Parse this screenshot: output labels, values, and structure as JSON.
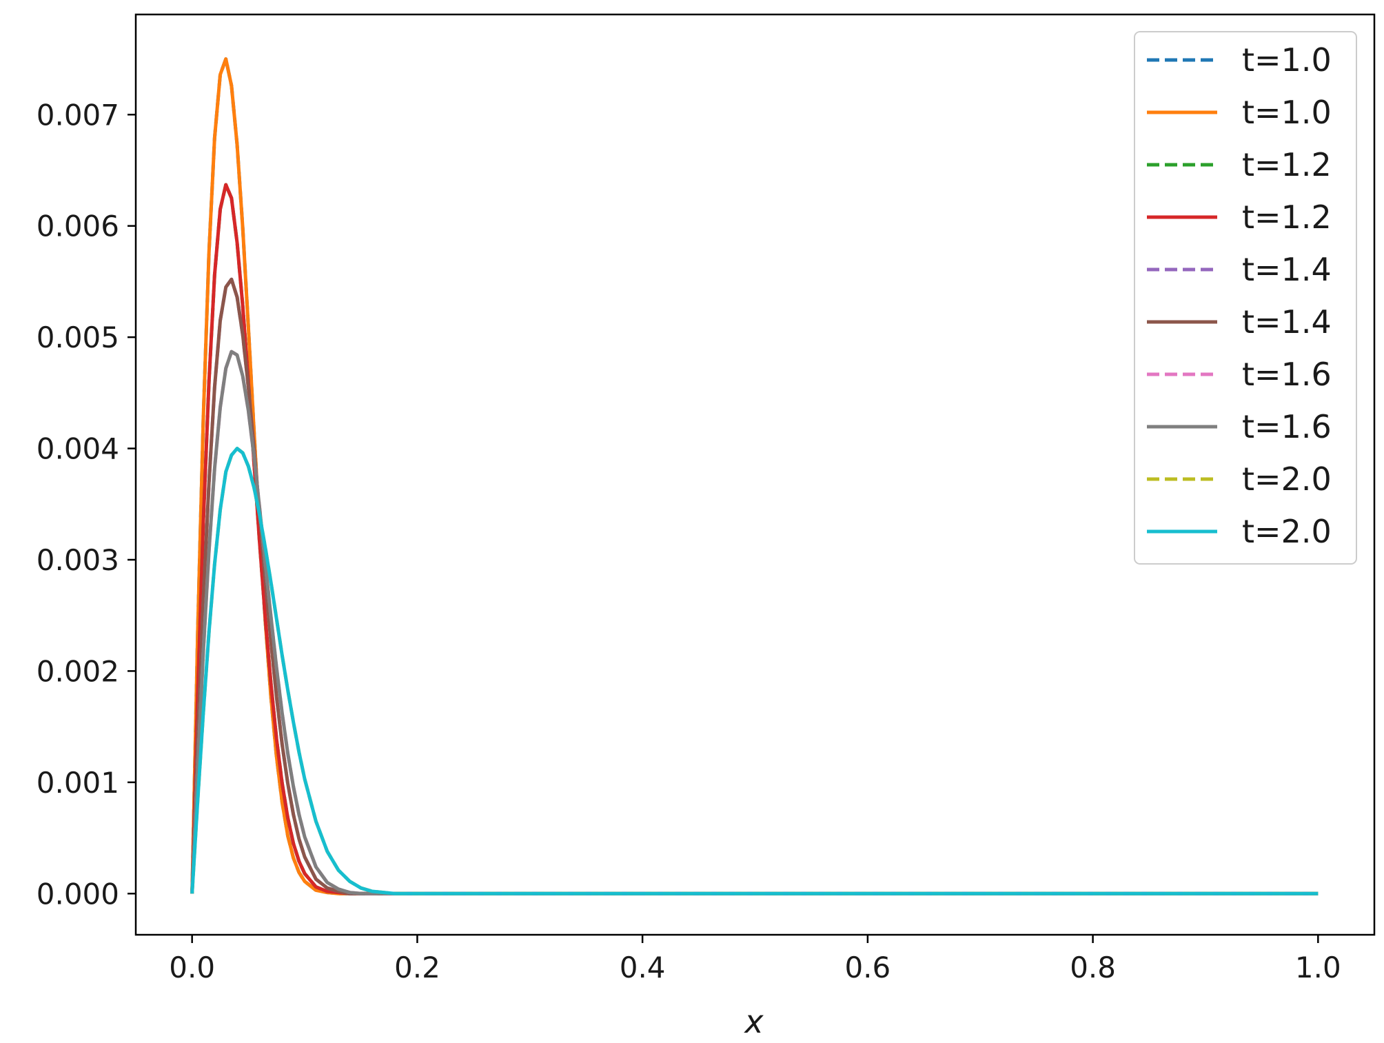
{
  "chart_data": {
    "type": "line",
    "title": "",
    "xlabel": "x",
    "ylabel": "",
    "xlim": [
      -0.05,
      1.05
    ],
    "ylim": [
      -0.00037,
      0.0079
    ],
    "xticks": [
      0.0,
      0.2,
      0.4,
      0.6,
      0.8,
      1.0
    ],
    "xtick_labels": [
      "0.0",
      "0.2",
      "0.4",
      "0.6",
      "0.8",
      "1.0"
    ],
    "yticks": [
      0.0,
      0.001,
      0.002,
      0.003,
      0.004,
      0.005,
      0.006,
      0.007
    ],
    "ytick_labels": [
      "0.000",
      "0.001",
      "0.002",
      "0.003",
      "0.004",
      "0.005",
      "0.006",
      "0.007"
    ],
    "grid": false,
    "legend_position": "top-right",
    "x": [
      0.0,
      0.005,
      0.01,
      0.015,
      0.02,
      0.025,
      0.03,
      0.035,
      0.04,
      0.045,
      0.05,
      0.055,
      0.06,
      0.065,
      0.07,
      0.075,
      0.08,
      0.085,
      0.09,
      0.095,
      0.1,
      0.11,
      0.12,
      0.13,
      0.14,
      0.15,
      0.16,
      0.17,
      0.18,
      0.2,
      0.25,
      0.3,
      0.4,
      0.5,
      0.6,
      0.7,
      0.8,
      0.9,
      1.0
    ],
    "series": [
      {
        "name": "t=1.0",
        "color": "#1f77b4",
        "dash": "dashed",
        "values": [
          0.0,
          0.00235,
          0.00428,
          0.00576,
          0.00679,
          0.00736,
          0.0075,
          0.00726,
          0.00673,
          0.00598,
          0.00509,
          0.00416,
          0.00326,
          0.00245,
          0.00177,
          0.00123,
          0.00082,
          0.00052,
          0.00032,
          0.00019,
          0.00011,
          3e-05,
          1e-05,
          0.0,
          0.0,
          0.0,
          0.0,
          0.0,
          0.0,
          0.0,
          0.0,
          0.0,
          0.0,
          0.0,
          0.0,
          0.0,
          0.0,
          0.0,
          0.0
        ]
      },
      {
        "name": "t=1.0",
        "color": "#ff7f0e",
        "dash": "solid",
        "values": [
          0.0,
          0.00235,
          0.00428,
          0.00576,
          0.00679,
          0.00736,
          0.0075,
          0.00726,
          0.00673,
          0.00598,
          0.00509,
          0.00416,
          0.00326,
          0.00245,
          0.00177,
          0.00123,
          0.00082,
          0.00052,
          0.00032,
          0.00019,
          0.00011,
          3e-05,
          1e-05,
          0.0,
          0.0,
          0.0,
          0.0,
          0.0,
          0.0,
          0.0,
          0.0,
          0.0,
          0.0,
          0.0,
          0.0,
          0.0,
          0.0,
          0.0,
          0.0
        ]
      },
      {
        "name": "t=1.2",
        "color": "#2ca02c",
        "dash": "dashed",
        "values": [
          0.0,
          0.00179,
          0.00334,
          0.0046,
          0.00556,
          0.00615,
          0.00637,
          0.00625,
          0.00585,
          0.00528,
          0.0046,
          0.00387,
          0.00315,
          0.00248,
          0.00189,
          0.00139,
          0.00099,
          0.00068,
          0.00045,
          0.00029,
          0.00018,
          6e-05,
          2e-05,
          1e-05,
          0.0,
          0.0,
          0.0,
          0.0,
          0.0,
          0.0,
          0.0,
          0.0,
          0.0,
          0.0,
          0.0,
          0.0,
          0.0,
          0.0,
          0.0
        ]
      },
      {
        "name": "t=1.2",
        "color": "#d62728",
        "dash": "solid",
        "values": [
          0.0,
          0.00179,
          0.00334,
          0.0046,
          0.00556,
          0.00615,
          0.00637,
          0.00625,
          0.00585,
          0.00528,
          0.0046,
          0.00387,
          0.00315,
          0.00248,
          0.00189,
          0.00139,
          0.00099,
          0.00068,
          0.00045,
          0.00029,
          0.00018,
          6e-05,
          2e-05,
          1e-05,
          0.0,
          0.0,
          0.0,
          0.0,
          0.0,
          0.0,
          0.0,
          0.0,
          0.0,
          0.0,
          0.0,
          0.0,
          0.0,
          0.0,
          0.0
        ]
      },
      {
        "name": "t=1.4",
        "color": "#9467bd",
        "dash": "dashed",
        "values": [
          0.0,
          0.00139,
          0.00264,
          0.00369,
          0.00455,
          0.00515,
          0.00545,
          0.00552,
          0.00536,
          0.00502,
          0.00455,
          0.004,
          0.00341,
          0.00282,
          0.00227,
          0.00177,
          0.00134,
          0.00099,
          0.00071,
          0.00049,
          0.00033,
          0.00013,
          5e-05,
          2e-05,
          0.0,
          0.0,
          0.0,
          0.0,
          0.0,
          0.0,
          0.0,
          0.0,
          0.0,
          0.0,
          0.0,
          0.0,
          0.0,
          0.0,
          0.0
        ]
      },
      {
        "name": "t=1.4",
        "color": "#8c564b",
        "dash": "solid",
        "values": [
          0.0,
          0.00139,
          0.00264,
          0.00369,
          0.00455,
          0.00515,
          0.00545,
          0.00552,
          0.00536,
          0.00502,
          0.00455,
          0.004,
          0.00341,
          0.00282,
          0.00227,
          0.00177,
          0.00134,
          0.00099,
          0.00071,
          0.00049,
          0.00033,
          0.00013,
          5e-05,
          2e-05,
          0.0,
          0.0,
          0.0,
          0.0,
          0.0,
          0.0,
          0.0,
          0.0,
          0.0,
          0.0,
          0.0,
          0.0,
          0.0,
          0.0,
          0.0
        ]
      },
      {
        "name": "t=1.6",
        "color": "#e377c2",
        "dash": "dashed",
        "values": [
          0.0,
          0.00114,
          0.00218,
          0.00308,
          0.00382,
          0.00437,
          0.00472,
          0.00487,
          0.00484,
          0.00465,
          0.00434,
          0.00393,
          0.00346,
          0.00297,
          0.00249,
          0.00203,
          0.00162,
          0.00126,
          0.00096,
          0.00071,
          0.00051,
          0.00024,
          0.0001,
          4e-05,
          1e-05,
          0.0,
          0.0,
          0.0,
          0.0,
          0.0,
          0.0,
          0.0,
          0.0,
          0.0,
          0.0,
          0.0,
          0.0,
          0.0,
          0.0
        ]
      },
      {
        "name": "t=1.6",
        "color": "#7f7f7f",
        "dash": "solid",
        "values": [
          0.0,
          0.00114,
          0.00218,
          0.00308,
          0.00382,
          0.00437,
          0.00472,
          0.00487,
          0.00484,
          0.00465,
          0.00434,
          0.00393,
          0.00346,
          0.00297,
          0.00249,
          0.00203,
          0.00162,
          0.00126,
          0.00096,
          0.00071,
          0.00051,
          0.00024,
          0.0001,
          4e-05,
          1e-05,
          0.0,
          0.0,
          0.0,
          0.0,
          0.0,
          0.0,
          0.0,
          0.0,
          0.0,
          0.0,
          0.0,
          0.0,
          0.0,
          0.0
        ]
      },
      {
        "name": "t=2.0",
        "color": "#bcbd22",
        "dash": "dashed",
        "values": [
          0.0,
          0.00084,
          0.00163,
          0.00235,
          0.00296,
          0.00345,
          0.00379,
          0.00394,
          0.004,
          0.00396,
          0.00384,
          0.00365,
          0.0034,
          0.00311,
          0.0028,
          0.00247,
          0.00214,
          0.00183,
          0.00154,
          0.00127,
          0.00103,
          0.00065,
          0.00038,
          0.00021,
          0.00011,
          5e-05,
          2e-05,
          1e-05,
          0.0,
          0.0,
          0.0,
          0.0,
          0.0,
          0.0,
          0.0,
          0.0,
          0.0,
          0.0,
          0.0
        ]
      },
      {
        "name": "t=2.0",
        "color": "#17becf",
        "dash": "solid",
        "values": [
          0.0,
          0.00084,
          0.00163,
          0.00235,
          0.00296,
          0.00345,
          0.00379,
          0.00394,
          0.004,
          0.00396,
          0.00384,
          0.00365,
          0.0034,
          0.00311,
          0.0028,
          0.00247,
          0.00214,
          0.00183,
          0.00154,
          0.00127,
          0.00103,
          0.00065,
          0.00038,
          0.00021,
          0.00011,
          5e-05,
          2e-05,
          1e-05,
          0.0,
          0.0,
          0.0,
          0.0,
          0.0,
          0.0,
          0.0,
          0.0,
          0.0,
          0.0,
          0.0
        ]
      }
    ]
  }
}
